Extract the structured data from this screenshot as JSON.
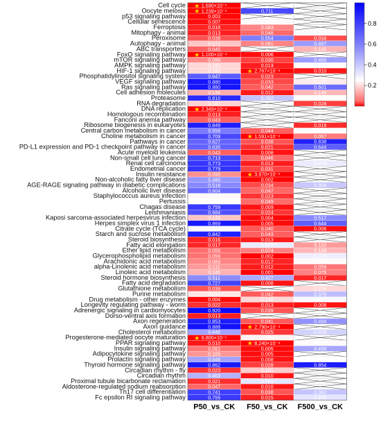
{
  "chart_data": {
    "type": "heatmap",
    "title": "",
    "columns": [
      "P50_vs_CK",
      "F50_vs_CK",
      "F500_vs_CK"
    ],
    "colorbar": {
      "ticks": [
        "0.2",
        "0.4",
        "0.6",
        "0.8"
      ],
      "range": [
        0,
        1
      ],
      "colors": {
        "low": "#ff0000",
        "mid": "#ffffff",
        "high": "#0000ff"
      }
    },
    "rows": [
      {
        "name": "Cell cycle",
        "values": [
          "1.690×10⁻⁵",
          null,
          null
        ]
      },
      {
        "name": "Oocyte meiosis",
        "values": [
          "1.239×10⁻⁵",
          "0.711",
          null
        ]
      },
      {
        "name": "p53 signaling pathway",
        "values": [
          "0.003",
          null,
          null
        ]
      },
      {
        "name": "Cellular senescence",
        "values": [
          "0.007",
          "0.243",
          null
        ]
      },
      {
        "name": "Ferroptosis",
        "values": [
          "0.016",
          "0.083",
          null
        ]
      },
      {
        "name": "Mitophagy - animal",
        "values": [
          "0.013",
          "0.048",
          "0.253"
        ]
      },
      {
        "name": "Peroxisome",
        "values": [
          "0.038",
          "0.554",
          "0.034"
        ]
      },
      {
        "name": "Autophagy - animal",
        "values": [
          "0.171",
          "0.081",
          "0.467"
        ]
      },
      {
        "name": "ABC transporters",
        "values": [
          "0.045",
          null,
          "0.145"
        ]
      },
      {
        "name": "FoxO signaling pathway",
        "values": [
          "1.100×10⁻⁴",
          "0.006",
          null
        ]
      },
      {
        "name": "mTOR signaling pathway",
        "values": [
          "0.088",
          "0.030",
          "0.465"
        ]
      },
      {
        "name": "AMPK signaling pathway",
        "values": [
          "0.192",
          "0.013",
          "0.244"
        ]
      },
      {
        "name": "HIF-1 signaling pathway",
        "values": [
          "0.193",
          "2.767×10⁻⁴",
          "0.010"
        ]
      },
      {
        "name": "Phosphatidylinositol signaling system",
        "values": [
          "0.647",
          "0.023",
          null
        ]
      },
      {
        "name": "VEGF signaling pathway",
        "values": [
          "0.880",
          "0.033",
          "0.222"
        ]
      },
      {
        "name": "Ras signaling pathway",
        "values": [
          "0.880",
          "0.042",
          "0.601"
        ]
      },
      {
        "name": "Cell adhesion molecules",
        "values": [
          "0.136",
          "0.012",
          "0.149"
        ]
      },
      {
        "name": "Proteasome",
        "values": [
          "0.810",
          "0.362",
          "0.244"
        ]
      },
      {
        "name": "RNA degradation",
        "values": [
          "0.187",
          null,
          "0.028"
        ]
      },
      {
        "name": "DNA replication",
        "values": [
          "2.349×10⁻⁴",
          null,
          null
        ]
      },
      {
        "name": "Homologous recombination",
        "values": [
          "0.013",
          null,
          null
        ]
      },
      {
        "name": "Fanconi anemia pathway",
        "values": [
          "0.043",
          null,
          null
        ]
      },
      {
        "name": "Ribosome biogenesis in eukaryotes",
        "values": [
          "0.849",
          null,
          "0.019"
        ]
      },
      {
        "name": "Central carbon metabolism in cancer",
        "values": [
          "0.559",
          "0.044",
          "0.246"
        ]
      },
      {
        "name": "Choline metabolism in cancer",
        "values": [
          "0.709",
          "1.591×10⁻⁴",
          "0.067"
        ]
      },
      {
        "name": "Pathways in cancer",
        "values": [
          "0.627",
          "0.038",
          "0.838"
        ]
      },
      {
        "name": "PD-L1 expression and PD-1 checkpoint pathway in cancer",
        "values": [
          "0.635",
          "0.021",
          "0.644"
        ]
      },
      {
        "name": "Acute myeloid leukemia",
        "values": [
          "0.043",
          "0.008",
          null
        ]
      },
      {
        "name": "Non-small cell lung cancer",
        "values": [
          "0.713",
          "0.046",
          null
        ]
      },
      {
        "name": "Renal cell carcinoma",
        "values": [
          "0.773",
          "0.013",
          "0.279"
        ]
      },
      {
        "name": "Endometrial cancer",
        "values": [
          "0.779",
          "0.031",
          null
        ]
      },
      {
        "name": "Insulin resistance",
        "values": [
          "0.095",
          "3.970×10⁻⁴",
          null
        ]
      },
      {
        "name": "Non-alcoholic fatty liver disease",
        "values": [
          "0.480",
          "0.002",
          null
        ]
      },
      {
        "name": "AGE-RAGE signaling pathway in diabetic complications",
        "values": [
          "0.516",
          "0.034",
          "0.354"
        ]
      },
      {
        "name": "Alcoholic liver disease",
        "values": [
          "0.604",
          "0.047",
          null
        ]
      },
      {
        "name": "Staphylococcus aureus infection",
        "values": [
          "0.239",
          "0.023",
          null
        ]
      },
      {
        "name": "Pertussis",
        "values": [
          "0.248",
          "0.049",
          null
        ]
      },
      {
        "name": "Chagas disease",
        "values": [
          "0.759",
          "0.009",
          null
        ]
      },
      {
        "name": "Leishmaniasis",
        "values": [
          "0.684",
          "0.024",
          null
        ]
      },
      {
        "name": "Kaposi sarcoma-associated herpesvirus infection",
        "values": [
          "0.170",
          "0.004",
          "0.517"
        ]
      },
      {
        "name": "Herpes simplex virus 1 infection",
        "values": [
          "0.869",
          "0.005",
          "0.644"
        ]
      },
      {
        "name": "Citrate cycle (TCA cycle)",
        "values": [
          "0.256",
          "0.040",
          "0.006"
        ]
      },
      {
        "name": "Starch and sucrose metabolism",
        "values": [
          "0.842",
          "0.043",
          null
        ]
      },
      {
        "name": "Steroid biosynthesis",
        "values": [
          "0.016",
          "0.013",
          null
        ]
      },
      {
        "name": "Fatty acid elongation",
        "values": [
          "0.017",
          "0.277",
          "0.110"
        ]
      },
      {
        "name": "Ether lipid metabolism",
        "values": [
          "0.050",
          "0.074",
          "0.149"
        ]
      },
      {
        "name": "Glycerophospholipid metabolism",
        "values": [
          "0.056",
          "0.002",
          "0.273"
        ]
      },
      {
        "name": "Arachidonic acid metabolism",
        "values": [
          "0.083",
          "0.017",
          "0.244"
        ]
      },
      {
        "name": "alpha-Linolenic acid metabolism",
        "values": [
          "0.111",
          "0.012",
          "0.059"
        ]
      },
      {
        "name": "Linoleic acid metabolism",
        "values": [
          "0.145",
          "0.001",
          "0.075"
        ]
      },
      {
        "name": "Steroid hormone biosynthesis",
        "values": [
          "0.511",
          "0.427",
          "0.017"
        ]
      },
      {
        "name": "Fatty acid degradation",
        "values": [
          "0.727",
          "0.008",
          null
        ]
      },
      {
        "name": "Glutathione metabolism",
        "values": [
          "0.039",
          null,
          "0.195"
        ]
      },
      {
        "name": "Purine metabolism",
        "values": [
          "0.217",
          "0.042",
          "0.376"
        ]
      },
      {
        "name": "Drug metabolism - other enzymes",
        "values": [
          "0.004",
          "0.196",
          "0.254"
        ]
      },
      {
        "name": "Longevity regulating pathway - worm",
        "values": [
          "0.022",
          "0.013",
          "0.008"
        ]
      },
      {
        "name": "Adrenergic signaling in cardiomyocytes",
        "values": [
          "0.920",
          "0.039",
          null
        ]
      },
      {
        "name": "Dorso-ventral axis formation",
        "values": [
          "0.013",
          null,
          null
        ]
      },
      {
        "name": "Axon regeneration",
        "values": [
          "0.853",
          "0.041",
          "0.494"
        ]
      },
      {
        "name": "Axon guidance",
        "values": [
          "0.888",
          "2.790×10⁻⁴",
          null
        ]
      },
      {
        "name": "Cholesterol metabolism",
        "values": [
          "0.446",
          "0.025",
          "0.329"
        ]
      },
      {
        "name": "Progesterone-mediated oocyte maturation",
        "values": [
          "6.800×10⁻⁵",
          "0.235",
          null
        ]
      },
      {
        "name": "PPAR signaling pathway",
        "values": [
          "0.010",
          "8.240×10⁻⁴",
          "0.244"
        ]
      },
      {
        "name": "Insulin signaling pathway",
        "values": [
          "0.061",
          "0.005",
          "0.439"
        ]
      },
      {
        "name": "Adipocytokine signaling pathway",
        "values": [
          "0.105",
          "0.005",
          null
        ]
      },
      {
        "name": "Prolactin signaling pathway",
        "values": [
          "0.446",
          "0.008",
          "0.249"
        ]
      },
      {
        "name": "Thyroid hormone signaling pathway",
        "values": [
          "0.862",
          "0.028",
          "0.854"
        ]
      },
      {
        "name": "Circadian rhythm - fly",
        "values": [
          "0.023",
          "0.181",
          null
        ]
      },
      {
        "name": "Circadian rhythm",
        "values": [
          "0.403",
          "0.010",
          null
        ]
      },
      {
        "name": "Proximal tubule bicarbonate reclamation",
        "values": [
          "0.021",
          "0.291",
          null
        ]
      },
      {
        "name": "Aldosterone-regulated sodium reabsorption",
        "values": [
          "0.047",
          "0.010",
          null
        ]
      },
      {
        "name": "Th17 cell differentiation",
        "values": [
          "0.741",
          "0.038",
          "0.362"
        ]
      },
      {
        "name": "Fc epsilon RI signaling pathway",
        "values": [
          "0.755",
          "0.015",
          "0.290"
        ]
      }
    ],
    "stars": [
      [
        0,
        0
      ],
      [
        1,
        0
      ],
      [
        9,
        0
      ],
      [
        12,
        1
      ],
      [
        19,
        0
      ],
      [
        24,
        1
      ],
      [
        31,
        1
      ],
      [
        59,
        1
      ],
      [
        61,
        0
      ],
      [
        62,
        1
      ]
    ]
  }
}
